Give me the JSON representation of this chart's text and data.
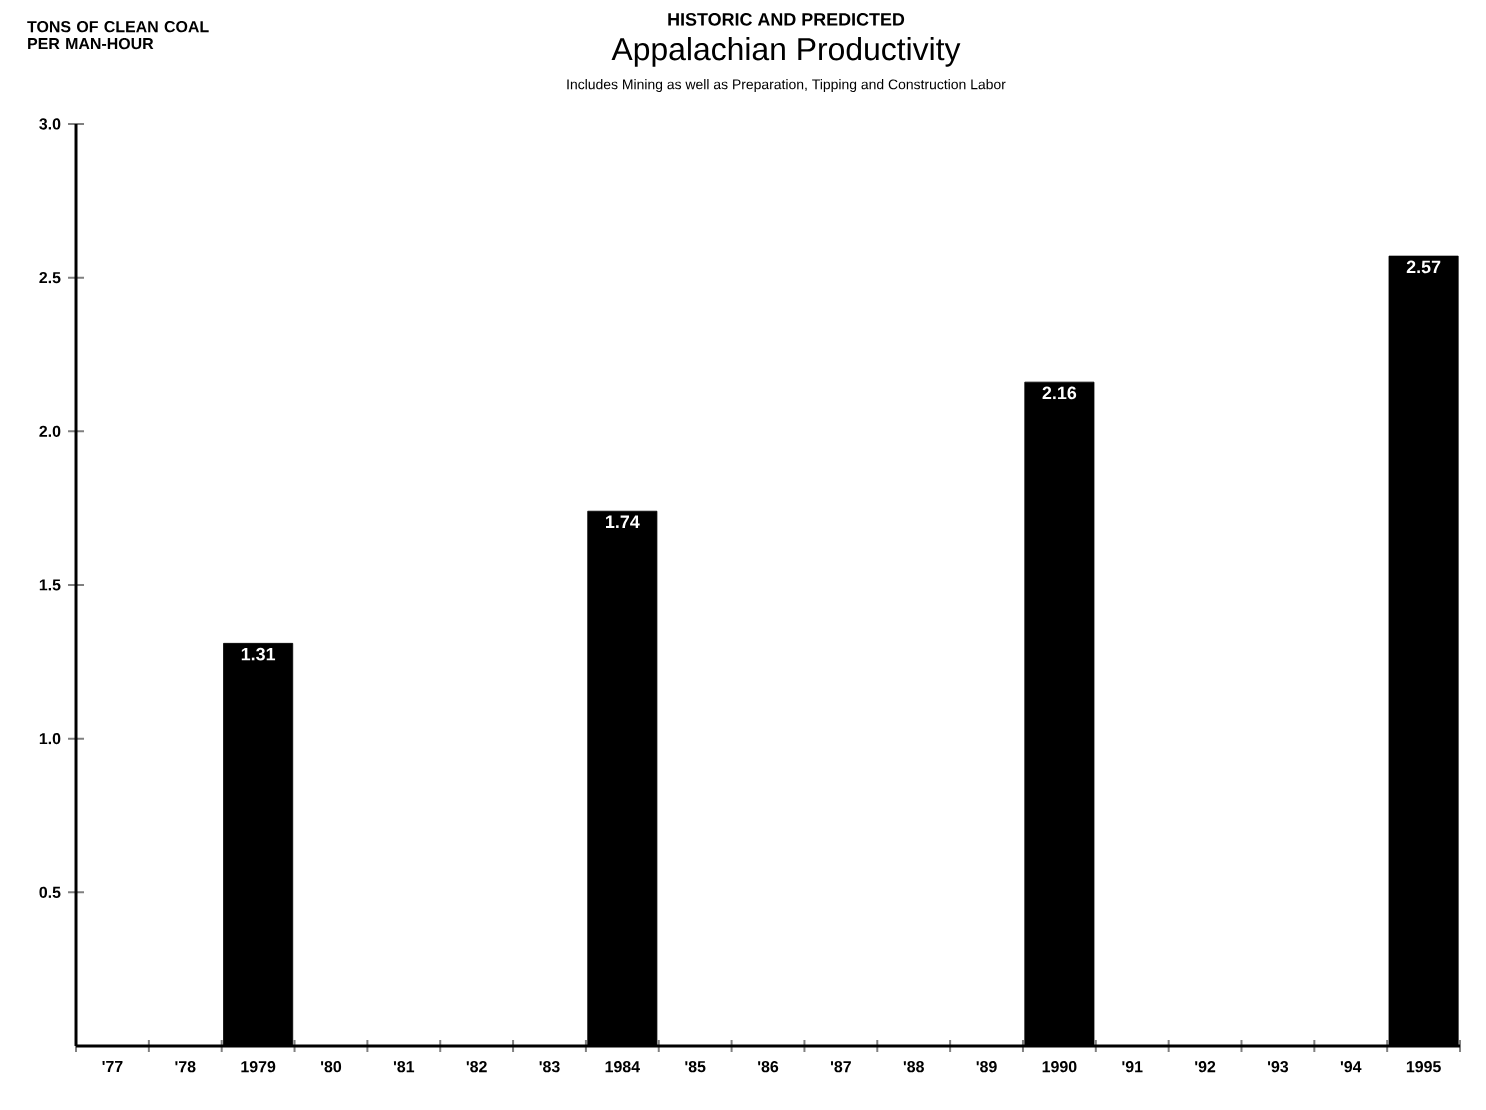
{
  "chart_data": {
    "type": "bar",
    "title": "Appalachian Productivity",
    "subtitle": "Includes Mining as well as Preparation, Tipping and Construction Labor",
    "annotations": [
      "HISTORIC AND PREDICTED"
    ],
    "ylabel": "TONS OF CLEAN COAL PER MAN-HOUR",
    "categories": [
      "'77",
      "'78",
      "1979",
      "'80",
      "'81",
      "'82",
      "'83",
      "1984",
      "'85",
      "'86",
      "'87",
      "'88",
      "'89",
      "1990",
      "'91",
      "'92",
      "'93",
      "'94",
      "1995"
    ],
    "values": [
      null,
      null,
      1.31,
      null,
      null,
      null,
      null,
      1.74,
      null,
      null,
      null,
      null,
      null,
      2.16,
      null,
      null,
      null,
      null,
      2.57
    ],
    "value_labels": [
      null,
      null,
      "1.31",
      null,
      null,
      null,
      null,
      "1.74",
      null,
      null,
      null,
      null,
      null,
      "2.16",
      null,
      null,
      null,
      null,
      "2.57"
    ],
    "color": "#000000",
    "ylim": [
      0,
      3
    ],
    "yticks": [
      {
        "value": 0.5,
        "label": "0.5"
      },
      {
        "value": 1.0,
        "label": "1.0"
      },
      {
        "value": 1.5,
        "label": "1.5"
      },
      {
        "value": 2.0,
        "label": "2.0"
      },
      {
        "value": 2.5,
        "label": "2.5"
      },
      {
        "value": 3.0,
        "label": "3.0"
      }
    ],
    "grid": false
  }
}
